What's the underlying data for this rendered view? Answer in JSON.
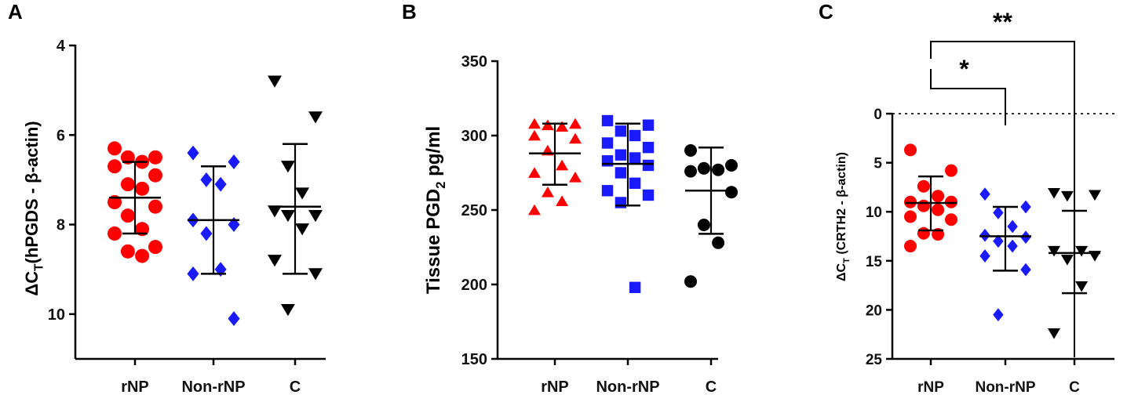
{
  "colors": {
    "rNP": "#ff0000",
    "Non-rNP": "#1a1aff",
    "C": "#000000"
  },
  "chart_data": [
    {
      "panel": "A",
      "type": "scatter",
      "ylabel_main": "ΔC",
      "ylabel_sub": "T",
      "ylabel_rest": "(hPGDS - β-actin)",
      "yaxis_reversed": true,
      "ylim": [
        4,
        11
      ],
      "yticks": [
        4,
        6,
        8,
        10
      ],
      "categories": [
        "rNP",
        "Non-rNP",
        "C"
      ],
      "series": [
        {
          "category": "rNP",
          "marker": "circle",
          "values": [
            6.3,
            6.5,
            6.5,
            6.6,
            6.7,
            6.9,
            7.1,
            7.2,
            7.5,
            7.6,
            7.8,
            8.1,
            8.2,
            8.5,
            8.6,
            8.7
          ],
          "mean": 7.4,
          "sd": [
            6.6,
            8.2
          ]
        },
        {
          "category": "Non-rNP",
          "marker": "diamond",
          "values": [
            6.4,
            6.6,
            7.0,
            7.1,
            7.9,
            8.0,
            8.2,
            9.0,
            9.1,
            10.1
          ],
          "mean": 7.9,
          "sd": [
            6.7,
            9.1
          ]
        },
        {
          "category": "C",
          "marker": "triangle-down",
          "values": [
            4.8,
            5.6,
            6.7,
            7.3,
            7.7,
            7.8,
            7.8,
            8.1,
            8.8,
            9.1,
            9.9
          ],
          "mean": 7.6,
          "sd": [
            6.2,
            9.1
          ]
        }
      ]
    },
    {
      "panel": "B",
      "type": "scatter",
      "ylabel_main": "Tissue PGD",
      "ylabel_sub": "2",
      "ylabel_rest": " pg/ml",
      "yaxis_reversed": false,
      "ylim": [
        150,
        350
      ],
      "yticks": [
        150,
        200,
        250,
        300,
        350
      ],
      "categories": [
        "rNP",
        "Non-rNP",
        "C"
      ],
      "series": [
        {
          "category": "rNP",
          "marker": "triangle-up",
          "values": [
            308,
            308,
            307,
            306,
            300,
            298,
            290,
            280,
            275,
            272,
            262,
            256,
            250
          ],
          "mean": 288,
          "sd": [
            267,
            308
          ]
        },
        {
          "category": "Non-rNP",
          "marker": "square",
          "values": [
            310,
            307,
            303,
            300,
            295,
            292,
            287,
            285,
            283,
            280,
            275,
            268,
            263,
            260,
            255,
            198
          ],
          "mean": 281,
          "sd": [
            253,
            308
          ]
        },
        {
          "category": "C",
          "marker": "circle",
          "values": [
            290,
            280,
            278,
            277,
            276,
            262,
            240,
            228,
            202
          ],
          "mean": 263,
          "sd": [
            234,
            292
          ]
        }
      ]
    },
    {
      "panel": "C",
      "type": "scatter",
      "ylabel_main": "ΔC",
      "ylabel_sub": "T",
      "ylabel_rest": " (CRTH2 - β-actin)",
      "yaxis_reversed": true,
      "ylim": [
        -4,
        25
      ],
      "yticks": [
        0,
        5,
        10,
        15,
        20,
        25
      ],
      "reference_line": 0,
      "categories": [
        "rNP",
        "Non-rNP",
        "C"
      ],
      "series": [
        {
          "category": "rNP",
          "marker": "circle",
          "values": [
            3.7,
            5.8,
            7.4,
            8.4,
            9.0,
            9.0,
            9.4,
            9.8,
            10.5,
            10.8,
            12.2,
            12.3,
            13.5
          ],
          "mean": 9.1,
          "sd": [
            6.4,
            11.9
          ]
        },
        {
          "category": "Non-rNP",
          "marker": "diamond",
          "values": [
            8.2,
            9.5,
            10.1,
            11.5,
            12.4,
            12.6,
            13.0,
            13.5,
            14.5,
            15.9,
            20.5
          ],
          "mean": 12.5,
          "sd": [
            9.5,
            16.0
          ]
        },
        {
          "category": "C",
          "marker": "triangle-down",
          "values": [
            8.1,
            8.3,
            8.4,
            14.0,
            14.0,
            14.5,
            14.9,
            17.6,
            22.4
          ],
          "mean": 14.2,
          "sd": [
            9.9,
            18.3
          ]
        }
      ],
      "significance": [
        {
          "from": "rNP",
          "to": "Non-rNP",
          "label": "*"
        },
        {
          "from": "rNP",
          "to": "C",
          "label": "**"
        }
      ]
    }
  ]
}
